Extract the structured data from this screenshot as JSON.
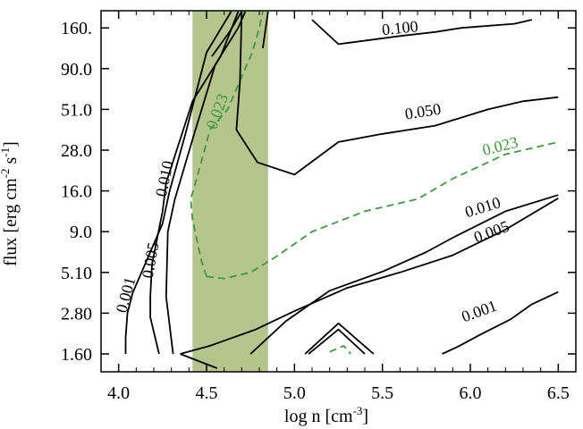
{
  "chart_data": {
    "type": "contour",
    "xlabel": "log n [cm",
    "xlabel_sup": "-3",
    "xlabel_end": "]",
    "ylabel": "flux [erg cm",
    "ylabel_sup1": "-2",
    "ylabel_mid": " s",
    "ylabel_sup2": "-1",
    "ylabel_end": "]",
    "xlim": [
      3.9,
      6.6
    ],
    "x_ticks": [
      {
        "value": 4.0,
        "label": "4.0"
      },
      {
        "value": 4.5,
        "label": "4.5"
      },
      {
        "value": 5.0,
        "label": "5.0"
      },
      {
        "value": 5.5,
        "label": "5.5"
      },
      {
        "value": 6.0,
        "label": "6.0"
      },
      {
        "value": 6.5,
        "label": "6.5"
      }
    ],
    "y_ticks": [
      "1.60",
      "2.80",
      "5.10",
      "9.0",
      "16.0",
      "28.0",
      "51.0",
      "90.0",
      "160."
    ],
    "y_index_range": [
      -0.5,
      8.4
    ],
    "shaded_band": {
      "x0": 4.42,
      "x1": 4.85,
      "color": "#b6c48e"
    },
    "colors": {
      "solid": "#000000",
      "dashed": "#3e9a3e"
    },
    "contours": [
      {
        "level": "0.001",
        "style": "solid",
        "segments": [
          [
            [
              4.04,
              0.0
            ],
            [
              4.04,
              0.4
            ],
            [
              4.05,
              1.0
            ],
            [
              4.08,
              1.5
            ],
            [
              4.15,
              2.2
            ],
            [
              4.25,
              3.2
            ],
            [
              4.29,
              4.0
            ],
            [
              4.38,
              5.4
            ],
            [
              4.5,
              7.4
            ],
            [
              4.64,
              8.4
            ]
          ],
          [
            [
              5.84,
              0.0
            ],
            [
              5.93,
              0.18
            ],
            [
              6.06,
              0.48
            ],
            [
              6.23,
              0.85
            ],
            [
              6.35,
              1.22
            ],
            [
              6.5,
              1.52
            ]
          ]
        ]
      },
      {
        "level": "0.005",
        "style": "solid",
        "segments": [
          [
            [
              4.23,
              0.0
            ],
            [
              4.18,
              0.9
            ],
            [
              4.18,
              1.4
            ],
            [
              4.19,
              2.2
            ],
            [
              4.25,
              3.5
            ],
            [
              4.27,
              4.2
            ],
            [
              4.42,
              6.2
            ],
            [
              4.58,
              7.3
            ],
            [
              4.68,
              8.4
            ]
          ],
          [
            [
              4.75,
              0.0
            ],
            [
              4.95,
              0.8
            ],
            [
              5.2,
              1.55
            ],
            [
              5.5,
              2.02
            ],
            [
              5.75,
              2.5
            ],
            [
              5.9,
              2.85
            ],
            [
              6.2,
              3.5
            ],
            [
              6.5,
              3.9
            ]
          ]
        ]
      },
      {
        "level": "0.010",
        "style": "solid",
        "segments": [
          [
            [
              4.31,
              0.0
            ],
            [
              4.27,
              1.4
            ],
            [
              4.28,
              3.0
            ],
            [
              4.32,
              3.8
            ],
            [
              4.43,
              5.4
            ],
            [
              4.55,
              7.1
            ],
            [
              4.68,
              8.0
            ],
            [
              4.72,
              8.4
            ]
          ],
          [
            [
              4.35,
              0.0
            ],
            [
              4.56,
              -0.35
            ]
          ],
          [
            [
              4.35,
              0.0
            ],
            [
              4.52,
              0.2
            ],
            [
              4.78,
              0.6
            ],
            [
              5.0,
              1.05
            ],
            [
              5.3,
              1.62
            ],
            [
              5.6,
              2.0
            ],
            [
              5.9,
              2.42
            ],
            [
              6.2,
              3.05
            ],
            [
              6.5,
              3.82
            ]
          ],
          [
            [
              4.53,
              7.3
            ],
            [
              4.63,
              7.9
            ],
            [
              4.7,
              8.4
            ]
          ]
        ]
      },
      {
        "level": "0.023",
        "style": "dashed",
        "segments": [
          [
            [
              4.5,
              1.9
            ],
            [
              4.47,
              2.3
            ],
            [
              4.42,
              3.3
            ],
            [
              4.41,
              3.8
            ],
            [
              4.45,
              4.4
            ],
            [
              4.52,
              5.5
            ],
            [
              4.62,
              6.0
            ],
            [
              4.7,
              6.8
            ],
            [
              4.76,
              7.4
            ],
            [
              4.8,
              8.0
            ],
            [
              4.82,
              8.4
            ]
          ],
          [
            [
              4.5,
              1.9
            ],
            [
              4.6,
              1.85
            ],
            [
              4.75,
              2.0
            ],
            [
              4.9,
              2.4
            ],
            [
              5.1,
              3.0
            ],
            [
              5.4,
              3.5
            ],
            [
              5.7,
              3.8
            ],
            [
              5.9,
              4.3
            ],
            [
              6.2,
              4.9
            ],
            [
              6.5,
              5.2
            ]
          ],
          [
            [
              5.2,
              0.05
            ],
            [
              5.28,
              0.2
            ],
            [
              5.32,
              0.0
            ]
          ]
        ]
      },
      {
        "level": "0.050",
        "style": "solid",
        "segments": [
          [
            [
              4.7,
              8.4
            ],
            [
              4.69,
              6.7
            ],
            [
              4.67,
              5.5
            ],
            [
              4.79,
              4.7
            ],
            [
              5.0,
              4.4
            ],
            [
              5.25,
              5.2
            ],
            [
              5.5,
              5.4
            ],
            [
              5.8,
              5.6
            ],
            [
              6.1,
              6.0
            ],
            [
              6.3,
              6.2
            ],
            [
              6.5,
              6.3
            ]
          ],
          [
            [
              4.85,
              8.4
            ],
            [
              4.82,
              7.5
            ]
          ]
        ]
      },
      {
        "level": "0.100",
        "style": "solid",
        "segments": [
          [
            [
              5.1,
              8.2
            ],
            [
              5.25,
              7.6
            ],
            [
              5.6,
              7.8
            ],
            [
              5.8,
              7.9
            ],
            [
              5.95,
              8.0
            ],
            [
              6.25,
              8.1
            ],
            [
              6.35,
              8.2
            ]
          ]
        ]
      },
      {
        "level": "",
        "style": "solid",
        "segments": [
          [
            [
              5.06,
              0.0
            ],
            [
              5.25,
              0.75
            ],
            [
              5.45,
              0.0
            ]
          ],
          [
            [
              5.08,
              0.0
            ],
            [
              5.25,
              0.6
            ],
            [
              5.4,
              0.0
            ]
          ]
        ]
      }
    ],
    "labels": [
      {
        "text": "0.001",
        "x": 4.04,
        "y": 1.45,
        "angle": -75,
        "color": "#000000"
      },
      {
        "text": "0.005",
        "x": 4.18,
        "y": 2.3,
        "angle": -80,
        "color": "#000000"
      },
      {
        "text": "0.010",
        "x": 4.26,
        "y": 4.3,
        "angle": -78,
        "color": "#000000"
      },
      {
        "text": "0.023",
        "x": 4.56,
        "y": 5.95,
        "angle": -70,
        "color": "#3e9a3e"
      },
      {
        "text": "0.100",
        "x": 5.6,
        "y": 8.0,
        "angle": -6,
        "color": "#000000"
      },
      {
        "text": "0.050",
        "x": 5.73,
        "y": 5.95,
        "angle": -9,
        "color": "#000000"
      },
      {
        "text": "0.023",
        "x": 6.17,
        "y": 5.1,
        "angle": -14,
        "color": "#3e9a3e"
      },
      {
        "text": "0.010",
        "x": 6.07,
        "y": 3.6,
        "angle": -17,
        "color": "#000000"
      },
      {
        "text": "0.005",
        "x": 6.12,
        "y": 3.0,
        "angle": -20,
        "color": "#000000"
      },
      {
        "text": "0.001",
        "x": 6.05,
        "y": 1.05,
        "angle": -20,
        "color": "#000000"
      }
    ]
  }
}
